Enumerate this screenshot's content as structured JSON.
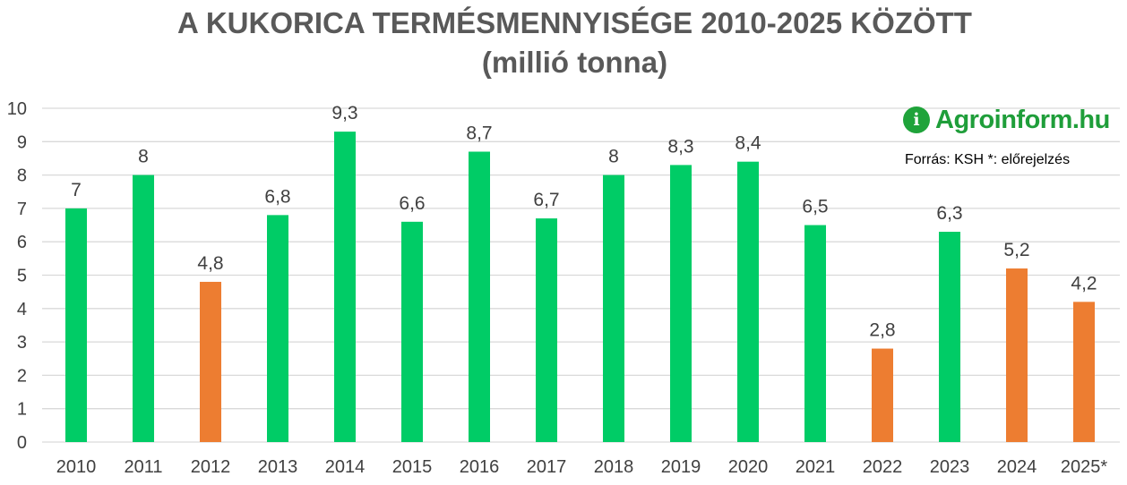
{
  "title": {
    "line1": "A KUKORICA TERMÉSMENNYISÉGE 2010-2025 KÖZÖTT",
    "line2": "(millió tonna)"
  },
  "logo": {
    "mark": "i",
    "text": "Agroinform.hu",
    "icon": "agroinform-logo-icon"
  },
  "source_note": "Forrás: KSH *: előrejelzés",
  "colors": {
    "above": "#00cc66",
    "below": "#ed7d31",
    "grid": "#d9d9d9",
    "text": "#595959"
  },
  "chart_data": {
    "type": "bar",
    "categories": [
      "2010",
      "2011",
      "2012",
      "2013",
      "2014",
      "2015",
      "2016",
      "2017",
      "2018",
      "2019",
      "2020",
      "2021",
      "2022",
      "2023",
      "2024",
      "2025*"
    ],
    "values": [
      7,
      8,
      4.8,
      6.8,
      9.3,
      6.6,
      8.7,
      6.7,
      8,
      8.3,
      8.4,
      6.5,
      2.8,
      6.3,
      5.2,
      4.2
    ],
    "data_labels": [
      "7",
      "8",
      "4,8",
      "6,8",
      "9,3",
      "6,6",
      "8,7",
      "6,7",
      "8",
      "8,3",
      "8,4",
      "6,5",
      "2,8",
      "6,3",
      "5,2",
      "4,2"
    ],
    "bar_colors": [
      "green",
      "green",
      "orange",
      "green",
      "green",
      "green",
      "green",
      "green",
      "green",
      "green",
      "green",
      "green",
      "orange",
      "green",
      "orange",
      "orange"
    ],
    "title": "A KUKORICA TERMÉSMENNYISÉGE 2010-2025 KÖZÖTT",
    "subtitle": "(millió tonna)",
    "xlabel": "",
    "ylabel": "",
    "ylim": [
      0,
      10
    ],
    "yticks": [
      "0",
      "1",
      "2",
      "3",
      "4",
      "5",
      "6",
      "7",
      "8",
      "9",
      "10"
    ],
    "grid": true,
    "legend": "none"
  }
}
